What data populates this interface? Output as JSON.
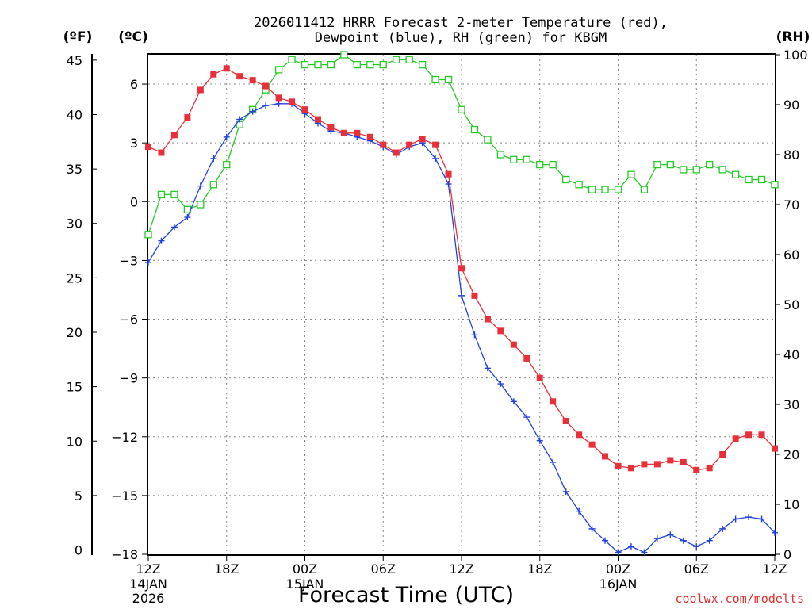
{
  "chart_data": {
    "type": "line",
    "title_line1": "2026011412 HRRR Forecast 2-meter Temperature (red),",
    "title_line2": "Dewpoint (blue), RH (green) for KBGM",
    "left_unit_f": "(ºF)",
    "left_unit_c": "(ºC)",
    "right_unit": "(RH)",
    "xlabel": "Forecast Time (UTC)",
    "credit": "coolwx.com/modelts",
    "x_range": [
      0,
      48
    ],
    "c_range": [
      -18,
      7.5
    ],
    "f_range": [
      -0.4,
      45.5
    ],
    "rh_range": [
      0,
      100
    ],
    "f_ticks": [
      "0",
      "5",
      "10",
      "15",
      "20",
      "25",
      "30",
      "35",
      "40",
      "45"
    ],
    "c_ticks": [
      "−18",
      "−15",
      "−12",
      "−9",
      "−6",
      "−3",
      "0",
      "3",
      "6"
    ],
    "rh_ticks": [
      "0",
      "10",
      "20",
      "30",
      "40",
      "50",
      "60",
      "70",
      "80",
      "90",
      "100"
    ],
    "x_ticks": [
      {
        "label": "12Z",
        "sub1": "14JAN",
        "sub2": "2026"
      },
      {
        "label": "18Z",
        "sub1": "",
        "sub2": ""
      },
      {
        "label": "00Z",
        "sub1": "15JAN",
        "sub2": ""
      },
      {
        "label": "06Z",
        "sub1": "",
        "sub2": ""
      },
      {
        "label": "12Z",
        "sub1": "",
        "sub2": ""
      },
      {
        "label": "18Z",
        "sub1": "",
        "sub2": ""
      },
      {
        "label": "00Z",
        "sub1": "16JAN",
        "sub2": ""
      },
      {
        "label": "06Z",
        "sub1": "",
        "sub2": ""
      },
      {
        "label": "12Z",
        "sub1": "",
        "sub2": ""
      }
    ],
    "series": [
      {
        "name": "Temperature",
        "unit": "C",
        "color": "#e8303a",
        "marker": "filled-square",
        "values": [
          2.8,
          2.5,
          3.4,
          4.3,
          5.7,
          6.5,
          6.8,
          6.4,
          6.2,
          5.9,
          5.3,
          5.1,
          4.7,
          4.2,
          3.8,
          3.5,
          3.5,
          3.3,
          2.9,
          2.5,
          2.9,
          3.2,
          2.9,
          1.4,
          -3.4,
          -4.8,
          -6.0,
          -6.6,
          -7.3,
          -8.0,
          -9.0,
          -10.2,
          -11.2,
          -11.9,
          -12.4,
          -13.0,
          -13.5,
          -13.6,
          -13.4,
          -13.4,
          -13.2,
          -13.3,
          -13.7,
          -13.6,
          -12.9,
          -12.1,
          -11.9,
          -11.9,
          -12.6
        ]
      },
      {
        "name": "Dewpoint",
        "unit": "C",
        "color": "#2040e0",
        "marker": "plus",
        "values": [
          -3.1,
          -2.0,
          -1.3,
          -0.8,
          0.8,
          2.2,
          3.3,
          4.2,
          4.6,
          4.9,
          5.0,
          5.0,
          4.5,
          4.0,
          3.6,
          3.5,
          3.3,
          3.1,
          2.8,
          2.4,
          2.8,
          3.0,
          2.2,
          0.9,
          -4.8,
          -6.8,
          -8.5,
          -9.3,
          -10.2,
          -11.0,
          -12.2,
          -13.3,
          -14.8,
          -15.8,
          -16.7,
          -17.3,
          -17.9,
          -17.6,
          -17.9,
          -17.2,
          -17.0,
          -17.3,
          -17.6,
          -17.3,
          -16.7,
          -16.2,
          -16.1,
          -16.2,
          -16.9
        ]
      },
      {
        "name": "RH",
        "unit": "%",
        "color": "#22cc22",
        "marker": "open-square",
        "values": [
          64,
          72,
          72,
          69,
          70,
          74,
          78,
          86,
          89,
          93,
          97,
          99,
          98,
          98,
          98,
          100,
          98,
          98,
          98,
          99,
          99,
          98,
          95,
          95,
          89,
          85,
          83,
          80,
          79,
          79,
          78,
          78,
          75,
          74,
          73,
          73,
          73,
          76,
          73,
          78,
          78,
          77,
          77,
          78,
          77,
          76,
          75,
          75,
          74
        ]
      }
    ]
  }
}
